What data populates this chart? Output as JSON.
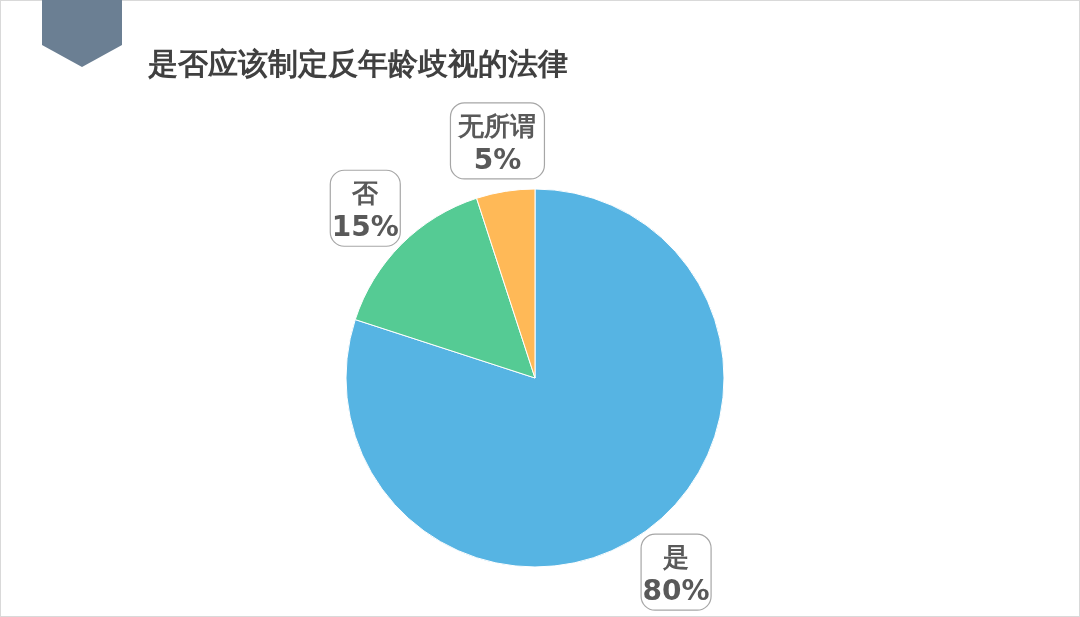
{
  "chart_data": {
    "type": "pie",
    "title": "是否应该制定反年龄歧视的法律",
    "categories": [
      "是",
      "否",
      "无所谓"
    ],
    "values": [
      80,
      15,
      5
    ],
    "value_labels": [
      "80%",
      "15%",
      "5%"
    ],
    "colors": [
      "#56b4e3",
      "#55cb94",
      "#ffb957"
    ]
  }
}
